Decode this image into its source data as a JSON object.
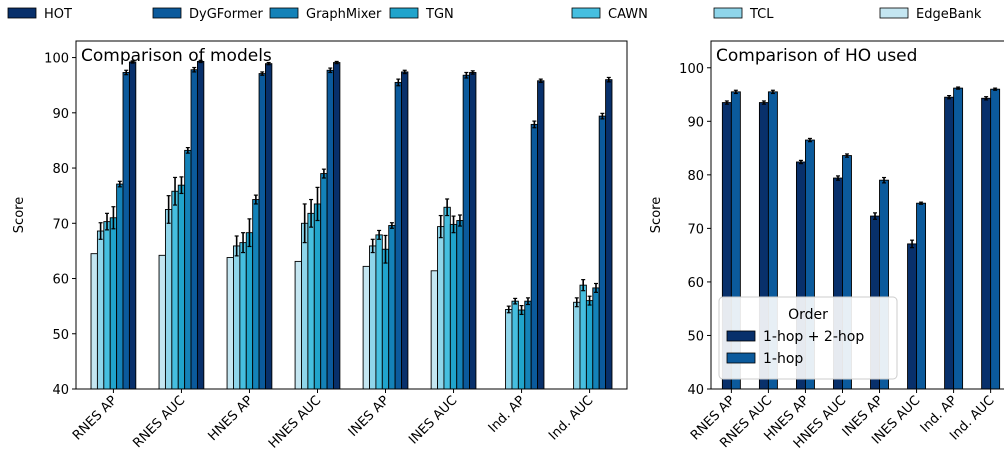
{
  "legend": {
    "entries": [
      {
        "label": "HOT",
        "color": "#08306b"
      },
      {
        "label": "DyGFormer",
        "color": "#0b5a9c"
      },
      {
        "label": "GraphMixer",
        "color": "#1482b8"
      },
      {
        "label": "TGN",
        "color": "#20a4cc"
      },
      {
        "label": "CAWN",
        "color": "#46bfe0"
      },
      {
        "label": "TCL",
        "color": "#8fd5ea"
      },
      {
        "label": "EdgeBank",
        "color": "#c4e6f1"
      }
    ]
  },
  "chart_data": [
    {
      "type": "bar",
      "title": "Comparison of models",
      "xlabel": "",
      "ylabel": "Score",
      "ylim": [
        40,
        103
      ],
      "yticks": [
        40,
        50,
        60,
        70,
        80,
        90,
        100
      ],
      "grid": false,
      "categories": [
        "RNES AP",
        "RNES AUC",
        "HNES AP",
        "HNES AUC",
        "INES AP",
        "INES AUC",
        "Ind. AP",
        "Ind. AUC"
      ],
      "series": [
        {
          "name": "EdgeBank",
          "color": "#c4e6f1",
          "values": [
            64.5,
            64.2,
            63.8,
            63.1,
            62.2,
            61.4,
            null,
            null
          ],
          "errors": [
            0,
            0,
            0,
            0,
            0,
            0,
            0,
            0
          ]
        },
        {
          "name": "TCL",
          "color": "#8fd5ea",
          "values": [
            68.6,
            72.5,
            65.9,
            70.0,
            65.9,
            69.4,
            54.4,
            55.7
          ],
          "errors": [
            1.5,
            2.5,
            1.8,
            3.5,
            1.2,
            2.0,
            0.6,
            0.8
          ]
        },
        {
          "name": "CAWN",
          "color": "#46bfe0",
          "values": [
            70.3,
            75.8,
            66.5,
            71.8,
            67.9,
            72.9,
            55.9,
            58.8
          ],
          "errors": [
            1.5,
            2.5,
            1.8,
            2.5,
            0.8,
            1.5,
            0.5,
            1.0
          ]
        },
        {
          "name": "TGN",
          "color": "#20a4cc",
          "values": [
            71.0,
            76.9,
            68.3,
            73.5,
            65.3,
            69.8,
            54.3,
            56.0
          ],
          "errors": [
            2.0,
            1.5,
            2.5,
            3.0,
            2.5,
            1.5,
            0.8,
            0.8
          ]
        },
        {
          "name": "GraphMixer",
          "color": "#1482b8",
          "values": [
            77.1,
            83.2,
            74.3,
            79.0,
            69.6,
            70.5,
            55.9,
            58.3
          ],
          "errors": [
            0.5,
            0.5,
            0.8,
            0.8,
            0.5,
            1.0,
            0.6,
            0.8
          ]
        },
        {
          "name": "DyGFormer",
          "color": "#0b5a9c",
          "values": [
            97.3,
            97.8,
            97.1,
            97.7,
            95.5,
            96.8,
            87.9,
            89.4
          ],
          "errors": [
            0.4,
            0.4,
            0.3,
            0.4,
            0.6,
            0.5,
            0.6,
            0.5
          ]
        },
        {
          "name": "HOT",
          "color": "#08306b",
          "values": [
            99.2,
            99.3,
            98.9,
            99.1,
            97.4,
            97.3,
            95.8,
            96.0
          ],
          "errors": [
            0.2,
            0.2,
            0.2,
            0.2,
            0.3,
            0.3,
            0.3,
            0.4
          ]
        }
      ]
    },
    {
      "type": "bar",
      "title": "Comparison of HO used",
      "xlabel": "",
      "ylabel": "Score",
      "ylim": [
        40,
        105
      ],
      "yticks": [
        40,
        50,
        60,
        70,
        80,
        90,
        100
      ],
      "grid": false,
      "legend_title": "Order",
      "legend_position": "lower-left",
      "categories": [
        "RNES AP",
        "RNES AUC",
        "HNES AP",
        "HNES AUC",
        "INES AP",
        "INES AUC",
        "Ind. AP",
        "Ind. AUC"
      ],
      "series": [
        {
          "name": "1-hop + 2-hop",
          "color": "#08306b",
          "values": [
            93.5,
            93.5,
            82.4,
            79.4,
            72.3,
            67.1,
            94.5,
            94.3
          ],
          "errors": [
            0.3,
            0.3,
            0.3,
            0.4,
            0.6,
            0.7,
            0.3,
            0.3
          ]
        },
        {
          "name": "1-hop",
          "color": "#0b5a9c",
          "values": [
            95.5,
            95.5,
            86.5,
            83.6,
            79.0,
            74.7,
            96.2,
            96.0
          ],
          "errors": [
            0.3,
            0.3,
            0.3,
            0.3,
            0.5,
            0.2,
            0.2,
            0.2
          ]
        }
      ]
    }
  ]
}
